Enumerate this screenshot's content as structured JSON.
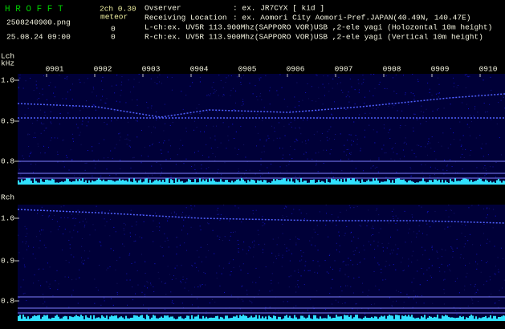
{
  "header": {
    "app": "H R O F F T",
    "mode": "2ch 0.30",
    "file": "2508240900.png",
    "meteor_label": "meteor",
    "lch_count": "0",
    "rch_count": "0",
    "datetime": "25.08.24 09:00",
    "observer_label": "Ovserver",
    "observer": ": ex. JR7CYX [ kid ]",
    "location_label": "Receiving Location",
    "location": ": ex. Aomori City Aomori-Pref.JAPAN(40.49N, 140.47E)",
    "lch_info": "L-ch:ex. UV5R 113.900Mhz(SAPPORO VOR)USB ,2-ele yagi (Holozontal 10m height)",
    "rch_info": "R-ch:ex. UV5R 113.900Mhz(SAPPORO VOR)USB ,2-ele yagi (Vertical 10m height)"
  },
  "panels": [
    {
      "label": "Lch",
      "unit": "kHz",
      "times": [
        "0901",
        "0902",
        "0903",
        "0904",
        "0905",
        "0906",
        "0907",
        "0908",
        "0909",
        "0910"
      ],
      "freq_ticks": [
        "1.0",
        "0.9",
        "0.8"
      ]
    },
    {
      "label": "Rch",
      "freq_ticks": [
        "1.0",
        "0.9",
        "0.8"
      ]
    }
  ]
}
